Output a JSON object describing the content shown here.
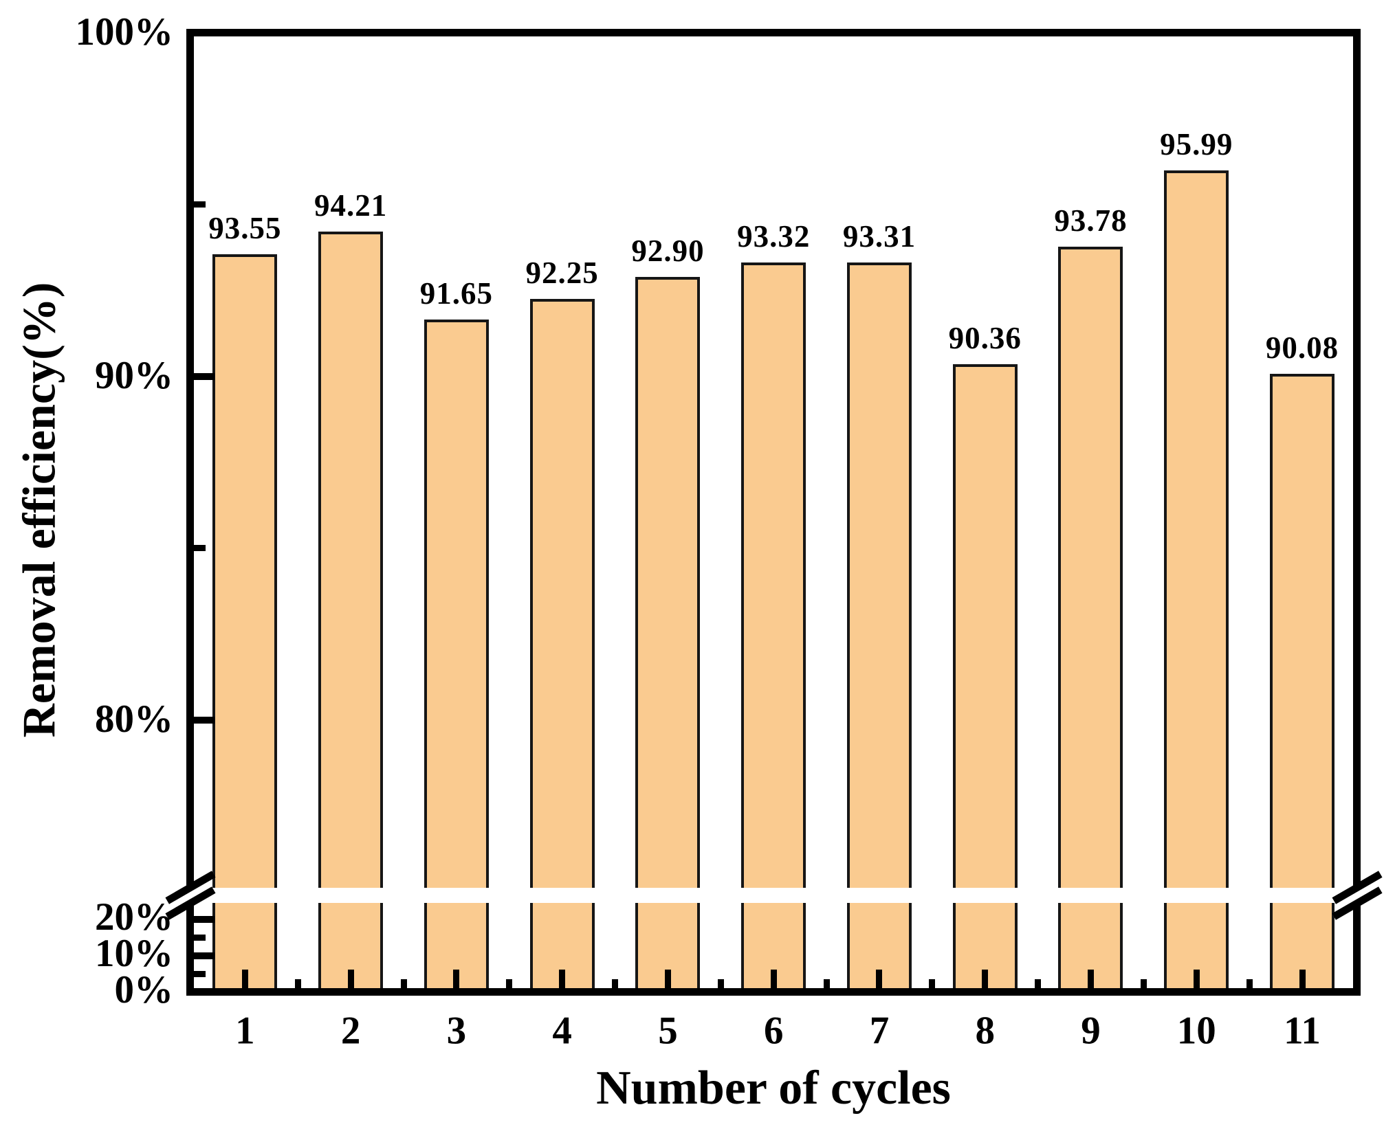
{
  "figure": {
    "background_color": "#ffffff",
    "text_color": "#000000"
  },
  "chart_data": {
    "type": "bar",
    "title": "",
    "xlabel": "Number of cycles",
    "ylabel": "Removal efficiency(%)",
    "categories": [
      "1",
      "2",
      "3",
      "4",
      "5",
      "6",
      "7",
      "8",
      "9",
      "10",
      "11"
    ],
    "values": [
      93.55,
      94.21,
      91.65,
      92.25,
      92.9,
      93.32,
      93.31,
      90.36,
      93.78,
      95.99,
      90.08
    ],
    "bar_labels": [
      "93.55",
      "94.21",
      "91.65",
      "92.25",
      "92.90",
      "93.32",
      "93.31",
      "90.36",
      "93.78",
      "95.99",
      "90.08"
    ],
    "bar_color": "#FACB90",
    "bar_border_color": "#161616",
    "axis_color": "#000000",
    "grid": false,
    "legend": false,
    "y_axis": {
      "unit": "%",
      "broken": true,
      "upper_segment_range": [
        75,
        100
      ],
      "lower_segment_range": [
        0,
        25
      ],
      "upper_major_ticks": [
        {
          "value": 100,
          "label": "100%"
        },
        {
          "value": 90,
          "label": "90%"
        },
        {
          "value": 80,
          "label": "80%"
        }
      ],
      "upper_minor_ticks": [
        95,
        85
      ],
      "lower_major_ticks": [
        {
          "value": 20,
          "label": "20%"
        },
        {
          "value": 10,
          "label": "10%"
        },
        {
          "value": 0,
          "label": "0%"
        }
      ],
      "lower_minor_ticks": [
        15,
        5
      ]
    }
  }
}
